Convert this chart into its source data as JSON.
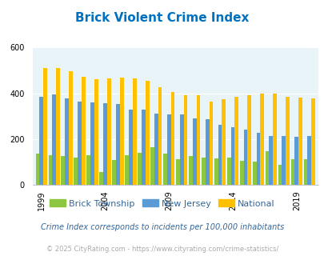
{
  "title": "Brick Violent Crime Index",
  "years": [
    1999,
    2000,
    2001,
    2002,
    2003,
    2004,
    2005,
    2006,
    2007,
    2008,
    2009,
    2010,
    2011,
    2012,
    2013,
    2014,
    2015,
    2016,
    2017,
    2018,
    2019,
    2020
  ],
  "brick": [
    135,
    130,
    125,
    120,
    130,
    55,
    110,
    130,
    140,
    165,
    135,
    112,
    125,
    120,
    115,
    120,
    105,
    100,
    148,
    88,
    112,
    112
  ],
  "nj": [
    385,
    395,
    378,
    365,
    360,
    358,
    353,
    330,
    330,
    310,
    308,
    308,
    290,
    285,
    262,
    252,
    240,
    226,
    212,
    212,
    210,
    212
  ],
  "national": [
    510,
    510,
    495,
    472,
    462,
    465,
    470,
    466,
    455,
    427,
    406,
    390,
    390,
    365,
    375,
    383,
    390,
    400,
    397,
    385,
    380,
    378
  ],
  "color_brick": "#8dc63f",
  "color_nj": "#5b9bd5",
  "color_national": "#ffc000",
  "color_bg": "#e8f4f8",
  "color_title": "#0070c0",
  "ylim": [
    0,
    600
  ],
  "yticks": [
    0,
    200,
    400,
    600
  ],
  "xlabel_ticks": [
    1999,
    2004,
    2009,
    2014,
    2019
  ],
  "footnote1": "Crime Index corresponds to incidents per 100,000 inhabitants",
  "footnote2": "© 2025 CityRating.com - https://www.cityrating.com/crime-statistics/",
  "legend_labels": [
    "Brick Township",
    "New Jersey",
    "National"
  ]
}
